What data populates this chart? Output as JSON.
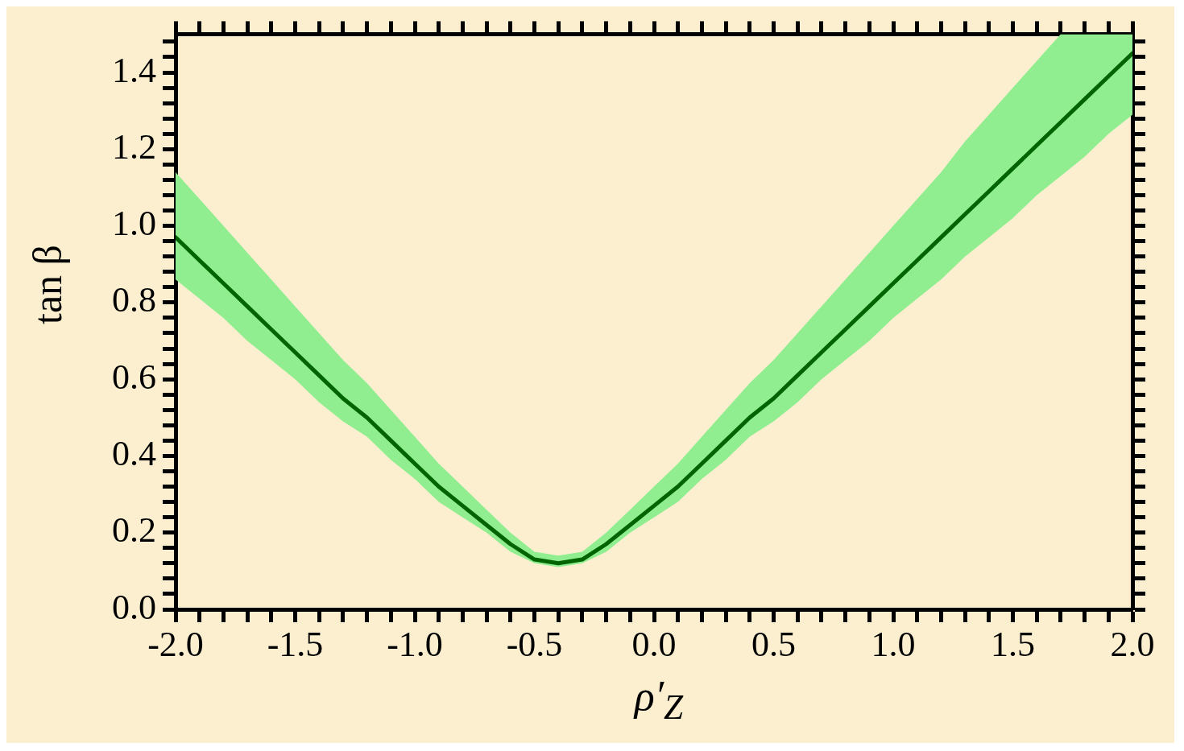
{
  "chart_data": {
    "type": "line",
    "xlabel": "ρ′$_{Z}$",
    "ylabel": "tan β",
    "x": [
      -2,
      -1.9,
      -1.8,
      -1.7,
      -1.6,
      -1.5,
      -1.4,
      -1.3,
      -1.2,
      -1.1,
      -1,
      -0.9,
      -0.8,
      -0.7,
      -0.6,
      -0.5,
      -0.4,
      -0.3,
      -0.2,
      -0.1,
      0,
      0.1,
      0.2,
      0.3,
      0.4,
      0.5,
      0.6,
      0.7,
      0.8,
      0.9,
      1,
      1.1,
      1.2,
      1.3,
      1.4,
      1.5,
      1.6,
      1.7,
      1.8,
      1.9,
      2
    ],
    "series": [
      {
        "color": "#006400",
        "values": [
          0.97,
          0.91,
          0.85,
          0.79,
          0.73,
          0.67,
          0.61,
          0.55,
          0.5,
          0.44,
          0.38,
          0.32,
          0.27,
          0.22,
          0.17,
          0.13,
          0.12,
          0.13,
          0.17,
          0.22,
          0.27,
          0.32,
          0.38,
          0.44,
          0.5,
          0.55,
          0.61,
          0.67,
          0.73,
          0.79,
          0.85,
          0.91,
          0.97,
          1.03,
          1.09,
          1.15,
          1.21,
          1.27,
          1.33,
          1.39,
          1.45
        ],
        "upper": [
          1.14,
          1.07,
          1.0,
          0.93,
          0.86,
          0.79,
          0.72,
          0.65,
          0.59,
          0.52,
          0.45,
          0.38,
          0.32,
          0.26,
          0.2,
          0.15,
          0.14,
          0.15,
          0.2,
          0.26,
          0.32,
          0.38,
          0.45,
          0.52,
          0.59,
          0.65,
          0.72,
          0.79,
          0.86,
          0.93,
          1.0,
          1.07,
          1.14,
          1.22,
          1.29,
          1.36,
          1.43,
          1.5,
          1.5,
          1.5,
          1.5
        ],
        "lower": [
          0.86,
          0.81,
          0.76,
          0.7,
          0.65,
          0.6,
          0.54,
          0.49,
          0.45,
          0.39,
          0.34,
          0.28,
          0.24,
          0.2,
          0.15,
          0.12,
          0.11,
          0.12,
          0.15,
          0.2,
          0.24,
          0.28,
          0.34,
          0.39,
          0.45,
          0.49,
          0.54,
          0.6,
          0.65,
          0.7,
          0.76,
          0.81,
          0.86,
          0.92,
          0.97,
          1.02,
          1.08,
          1.13,
          1.18,
          1.24,
          1.29
        ]
      }
    ],
    "xlim": [
      -2,
      2
    ],
    "ylim": [
      0,
      1.5
    ],
    "xticks": [
      {
        "value": -2,
        "label": "-2.0"
      },
      {
        "value": -1.9,
        "label": null
      },
      {
        "value": -1.8,
        "label": null
      },
      {
        "value": -1.7,
        "label": null
      },
      {
        "value": -1.6,
        "label": null
      },
      {
        "value": -1.5,
        "label": "-1.5"
      },
      {
        "value": -1.4,
        "label": null
      },
      {
        "value": -1.3,
        "label": null
      },
      {
        "value": -1.2,
        "label": null
      },
      {
        "value": -1.1,
        "label": null
      },
      {
        "value": -1,
        "label": "-1.0"
      },
      {
        "value": -0.9,
        "label": null
      },
      {
        "value": -0.8,
        "label": null
      },
      {
        "value": -0.7,
        "label": null
      },
      {
        "value": -0.6,
        "label": null
      },
      {
        "value": -0.5,
        "label": "-0.5"
      },
      {
        "value": -0.4,
        "label": null
      },
      {
        "value": -0.3,
        "label": null
      },
      {
        "value": -0.2,
        "label": null
      },
      {
        "value": -0.1,
        "label": null
      },
      {
        "value": 0,
        "label": "0.0"
      },
      {
        "value": 0.1,
        "label": null
      },
      {
        "value": 0.2,
        "label": null
      },
      {
        "value": 0.3,
        "label": null
      },
      {
        "value": 0.4,
        "label": null
      },
      {
        "value": 0.5,
        "label": "0.5"
      },
      {
        "value": 0.6,
        "label": null
      },
      {
        "value": 0.7,
        "label": null
      },
      {
        "value": 0.8,
        "label": null
      },
      {
        "value": 0.9,
        "label": null
      },
      {
        "value": 1,
        "label": "1.0"
      },
      {
        "value": 1.1,
        "label": null
      },
      {
        "value": 1.2,
        "label": null
      },
      {
        "value": 1.3,
        "label": null
      },
      {
        "value": 1.4,
        "label": null
      },
      {
        "value": 1.5,
        "label": "1.5"
      },
      {
        "value": 1.6,
        "label": null
      },
      {
        "value": 1.7,
        "label": null
      },
      {
        "value": 1.8,
        "label": null
      },
      {
        "value": 1.9,
        "label": null
      },
      {
        "value": 2,
        "label": "2.0"
      }
    ],
    "yticks": [
      {
        "value": 0,
        "label": "0.0"
      },
      {
        "value": 0.04,
        "label": null
      },
      {
        "value": 0.08,
        "label": null
      },
      {
        "value": 0.12,
        "label": null
      },
      {
        "value": 0.16,
        "label": null
      },
      {
        "value": 0.2,
        "label": "0.2"
      },
      {
        "value": 0.24,
        "label": null
      },
      {
        "value": 0.28,
        "label": null
      },
      {
        "value": 0.32,
        "label": null
      },
      {
        "value": 0.36,
        "label": null
      },
      {
        "value": 0.4,
        "label": "0.4"
      },
      {
        "value": 0.44,
        "label": null
      },
      {
        "value": 0.48,
        "label": null
      },
      {
        "value": 0.52,
        "label": null
      },
      {
        "value": 0.56,
        "label": null
      },
      {
        "value": 0.6,
        "label": "0.6"
      },
      {
        "value": 0.64,
        "label": null
      },
      {
        "value": 0.68,
        "label": null
      },
      {
        "value": 0.72,
        "label": null
      },
      {
        "value": 0.76,
        "label": null
      },
      {
        "value": 0.8,
        "label": "0.8"
      },
      {
        "value": 0.84,
        "label": null
      },
      {
        "value": 0.88,
        "label": null
      },
      {
        "value": 0.92,
        "label": null
      },
      {
        "value": 0.96,
        "label": null
      },
      {
        "value": 1,
        "label": "1.0"
      },
      {
        "value": 1.04,
        "label": null
      },
      {
        "value": 1.08,
        "label": null
      },
      {
        "value": 1.12,
        "label": null
      },
      {
        "value": 1.16,
        "label": null
      },
      {
        "value": 1.2,
        "label": "1.2"
      },
      {
        "value": 1.24,
        "label": null
      },
      {
        "value": 1.28,
        "label": null
      },
      {
        "value": 1.32,
        "label": null
      },
      {
        "value": 1.36,
        "label": null
      },
      {
        "value": 1.4,
        "label": "1.4"
      },
      {
        "value": 1.44,
        "label": null
      },
      {
        "value": 1.48,
        "label": null
      }
    ],
    "grid": false,
    "legend": false
  }
}
